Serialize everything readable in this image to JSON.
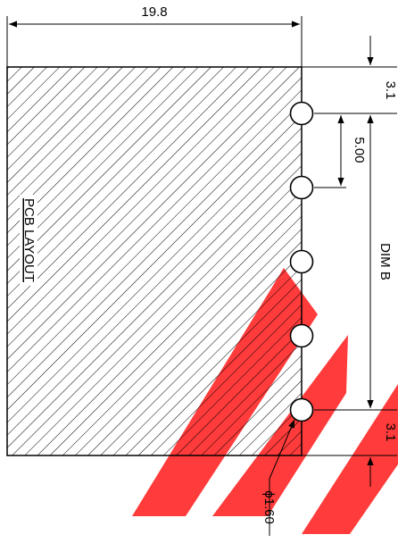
{
  "dimensions": {
    "overall_width": "19.8",
    "top_offset": "3.1",
    "pitch": "5.00",
    "span": "DIM B",
    "bottom_offset": "3.1",
    "hole_diameter": "ϕ1.60"
  },
  "labels": {
    "pcb_layout": "PCB LAYOUT"
  },
  "holes": {
    "count": 5
  },
  "colors": {
    "line": "#000000",
    "watermark": "#ff1a1a"
  }
}
